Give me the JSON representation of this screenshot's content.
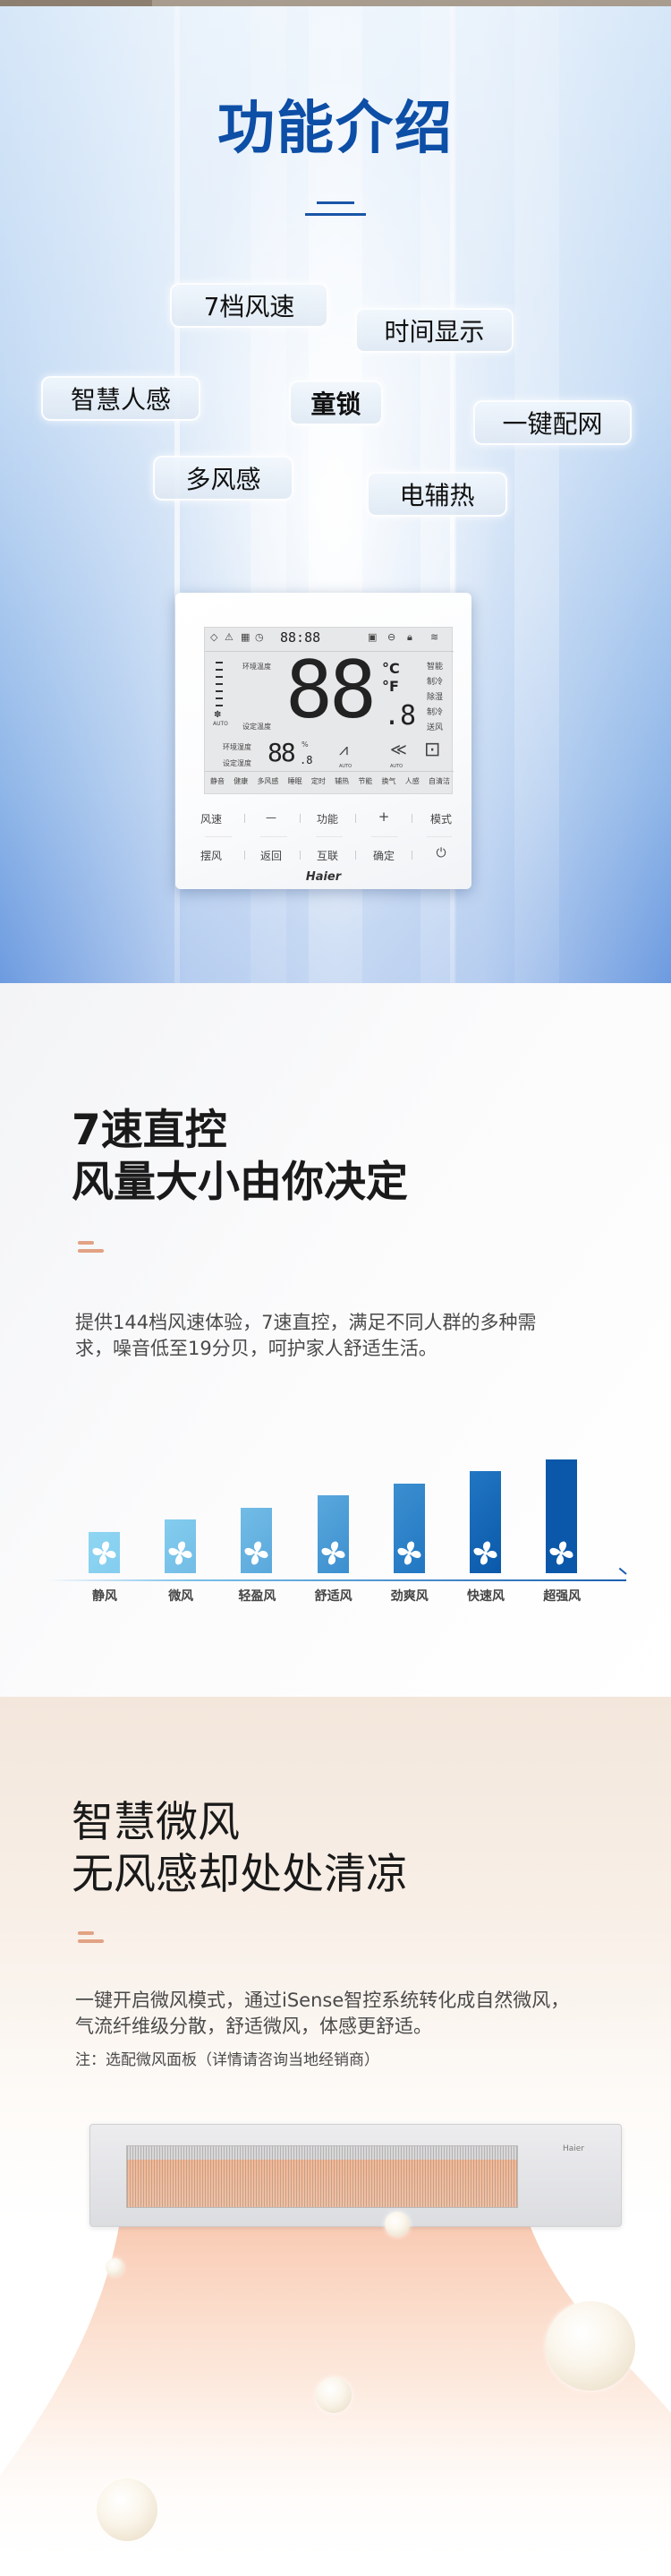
{
  "intro": {
    "title": "功能介绍",
    "features": [
      "7档风速",
      "时间显示",
      "智慧人感",
      "童锁",
      "一键配网",
      "多风感",
      "电辅热"
    ]
  },
  "controller": {
    "clock": "88:88",
    "ambient_temp_label": "环境温度",
    "set_temp_label": "设定温度",
    "temp_digits": "88",
    "temp_decimal": ".8",
    "unit_c": "°C",
    "unit_f": "°F",
    "modes": [
      "智能",
      "制冷",
      "除湿",
      "制冷",
      "送风"
    ],
    "ambient_humidity_label": "环境湿度",
    "set_humidity_label": "设定湿度",
    "humidity_digits": "88",
    "humidity_decimal": ".8",
    "humidity_unit": "%",
    "auto": "AUTO",
    "functions": [
      "静音",
      "健康",
      "多风感",
      "睡眠",
      "定时",
      "辅热",
      "节能",
      "换气",
      "人感",
      "自清洁"
    ],
    "buttons_row1": [
      "风速",
      "—",
      "功能",
      "+",
      "模式"
    ],
    "buttons_row2": [
      "摆风",
      "返回",
      "互联",
      "确定"
    ],
    "power_icon": "power-icon",
    "brand": "Haier"
  },
  "speed": {
    "title_line1": "7速直控",
    "title_line2": "风量大小由你决定",
    "body_line1": "提供144档风速体验，7速直控，满足不同人群的多种需",
    "body_line2": "求，噪音低至19分贝，呵护家人舒适生活。"
  },
  "chart_data": {
    "type": "bar",
    "categories": [
      "静风",
      "微风",
      "轻盈风",
      "舒适风",
      "劲爽风",
      "快速风",
      "超强风"
    ],
    "values": [
      1,
      2,
      3,
      4,
      5,
      6,
      7
    ],
    "colors": [
      "#8fd6f2",
      "#84cdef",
      "#72bce6",
      "#5aa8dc",
      "#3c8fcf",
      "#2177c3",
      "#0b58aa"
    ],
    "icon": "fan-icon"
  },
  "breeze": {
    "title_line1": "智慧微风",
    "title_line2": "无风感却处处清凉",
    "body_line1": "一键开启微风模式，通过iSense智控系统转化成自然微风，",
    "body_line2": "气流纤维级分散，舒适微风，体感更舒适。",
    "note": "注：选配微风面板（详情请咨询当地经销商）",
    "panel_brand": "Haier"
  }
}
